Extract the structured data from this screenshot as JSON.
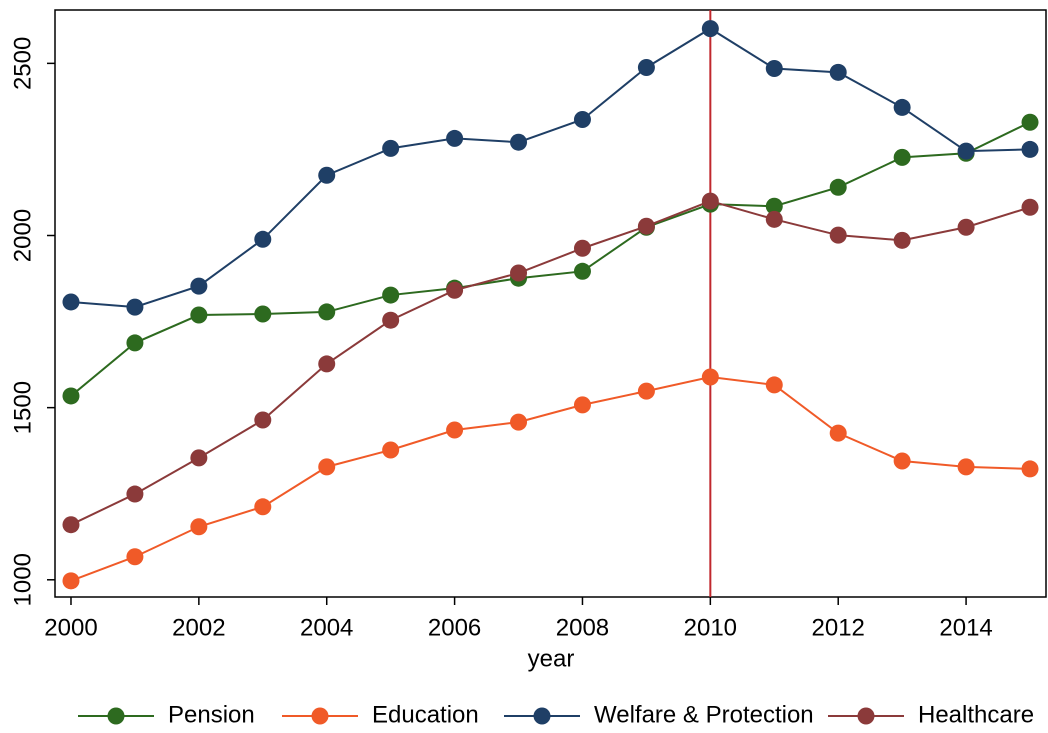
{
  "chart_data": {
    "type": "line",
    "x": [
      2000,
      2001,
      2002,
      2003,
      2004,
      2005,
      2006,
      2007,
      2008,
      2009,
      2010,
      2011,
      2012,
      2013,
      2014,
      2015
    ],
    "series": [
      {
        "name": "Pension",
        "color": "#2d6a1f",
        "values": [
          1534,
          1688,
          1769,
          1772,
          1778,
          1827,
          1847,
          1876,
          1896,
          2024,
          2091,
          2085,
          2140,
          2227,
          2239,
          2329
        ]
      },
      {
        "name": "Education",
        "color": "#f05a28",
        "values": [
          997,
          1067,
          1154,
          1212,
          1328,
          1377,
          1435,
          1458,
          1508,
          1548,
          1589,
          1566,
          1426,
          1345,
          1328,
          1322
        ]
      },
      {
        "name": "Welfare & Protection",
        "color": "#1f3f66",
        "values": [
          1807,
          1792,
          1853,
          1989,
          2175,
          2253,
          2282,
          2271,
          2337,
          2488,
          2601,
          2485,
          2474,
          2372,
          2245,
          2250
        ]
      },
      {
        "name": "Healthcare",
        "color": "#8b3a3a",
        "values": [
          1160,
          1249,
          1354,
          1464,
          1627,
          1754,
          1841,
          1891,
          1963,
          2027,
          2100,
          2047,
          2001,
          1986,
          2024,
          2082
        ]
      }
    ],
    "xlabel": "year",
    "xlim": [
      1999.75,
      2015.25
    ],
    "xticks": [
      2000,
      2002,
      2004,
      2006,
      2008,
      2010,
      2012,
      2014
    ],
    "ylim": [
      950,
      2655
    ],
    "yticks": [
      1000,
      1500,
      2000,
      2500
    ],
    "vline": 2010,
    "vline_color": "#c0282d",
    "legend": "bottom"
  }
}
